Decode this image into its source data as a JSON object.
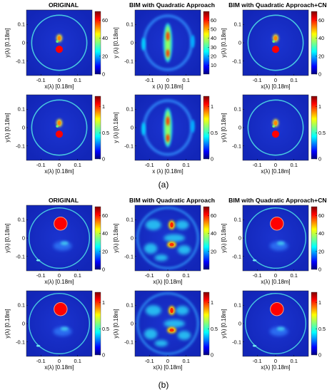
{
  "caption_a": "(a)",
  "caption_b": "(b)",
  "colors": {
    "colormap": [
      "#00007f",
      "#0000ff",
      "#0080ff",
      "#00ffff",
      "#80ff80",
      "#ffff00",
      "#ff8000",
      "#ff0000",
      "#7f0000"
    ],
    "background": "#1a2bc4",
    "ring": "#48c8e0"
  },
  "chart_data": [
    {
      "type": "heatmap",
      "title": "ORIGINAL",
      "panel": "a",
      "row": 1,
      "col": 1,
      "xlabel": "x(λ) [0.18m]",
      "ylabel": "y(λ) [0.18m]",
      "xticks": [
        "-0.1",
        "0",
        "0.1"
      ],
      "yticks": [
        "0.1",
        "0",
        "-0.1"
      ],
      "colorbar_ticks": [
        "60",
        "40",
        "20",
        "0"
      ],
      "clim": [
        0,
        70
      ],
      "grid": false
    },
    {
      "type": "heatmap",
      "title": "BIM with Quadratic Approach",
      "panel": "a",
      "row": 1,
      "col": 2,
      "xlabel": "x (λ) [0.18m]",
      "ylabel": "y (λ) [0.18m]",
      "xticks": [
        "-0.1",
        "0",
        "0.1"
      ],
      "yticks": [
        "0.1",
        "0",
        "-0.1"
      ],
      "colorbar_ticks": [
        "60",
        "50",
        "40",
        "30",
        "20",
        "10"
      ],
      "clim": [
        0,
        70
      ],
      "grid": false
    },
    {
      "type": "heatmap",
      "title": "BIM with Quadratic Approach+CNN",
      "panel": "a",
      "row": 1,
      "col": 3,
      "xlabel": "x(λ) [0.18m]",
      "ylabel": "y(λ) [0.18m]",
      "xticks": [
        "-0.1",
        "0",
        "0.1"
      ],
      "yticks": [
        "0.1",
        "0",
        "-0.1"
      ],
      "colorbar_ticks": [
        "60",
        "40",
        "20",
        "0"
      ],
      "clim": [
        0,
        70
      ],
      "grid": false
    },
    {
      "type": "heatmap",
      "title": "",
      "panel": "a",
      "row": 2,
      "col": 1,
      "xlabel": "x(λ) [0.18m]",
      "ylabel": "y(λ) [0.18m]",
      "xticks": [
        "-0.1",
        "0",
        "0.1"
      ],
      "yticks": [
        "0.1",
        "0",
        "-0.1"
      ],
      "colorbar_ticks": [
        "1",
        "0.5",
        "0"
      ],
      "clim": [
        0,
        1.2
      ],
      "grid": false
    },
    {
      "type": "heatmap",
      "title": "",
      "panel": "a",
      "row": 2,
      "col": 2,
      "xlabel": "x (λ) [0.18m]",
      "ylabel": "y (λ) [0.18m]",
      "xticks": [
        "-0.1",
        "0",
        "0.1"
      ],
      "yticks": [
        "0.1",
        "0",
        "-0.1"
      ],
      "colorbar_ticks": [
        "1",
        "0.5",
        "0"
      ],
      "clim": [
        0,
        1.2
      ],
      "grid": false
    },
    {
      "type": "heatmap",
      "title": "",
      "panel": "a",
      "row": 2,
      "col": 3,
      "xlabel": "x(λ) [0.18m]",
      "ylabel": "y(λ) [0.18m]",
      "xticks": [
        "-0.1",
        "0",
        "0.1"
      ],
      "yticks": [
        "0.1",
        "0",
        "-0.1"
      ],
      "colorbar_ticks": [
        "1",
        "0.5",
        "0"
      ],
      "clim": [
        0,
        1.2
      ],
      "grid": false
    },
    {
      "type": "heatmap",
      "title": "ORIGINAL",
      "panel": "b",
      "row": 1,
      "col": 1,
      "xlabel": "x(λ) [0.18m]",
      "ylabel": "y(λ) [0.18m]",
      "xticks": [
        "-0.1",
        "0",
        "0.1"
      ],
      "yticks": [
        "0.1",
        "0",
        "-0.1"
      ],
      "colorbar_ticks": [
        "60",
        "40",
        "20",
        "0"
      ],
      "clim": [
        0,
        70
      ],
      "grid": false
    },
    {
      "type": "heatmap",
      "title": "BIM with Quadratic Approach",
      "panel": "b",
      "row": 1,
      "col": 2,
      "xlabel": "x(λ) [0.18m]",
      "ylabel": "y(λ) [0.18m]",
      "xticks": [
        "-0.1",
        "0",
        "0.1"
      ],
      "yticks": [
        "0.1",
        "0",
        "-0.1"
      ],
      "colorbar_ticks": [
        "60",
        "40",
        "20"
      ],
      "clim": [
        0,
        70
      ],
      "grid": false
    },
    {
      "type": "heatmap",
      "title": "BIM with Quadratic Approach+CNN",
      "panel": "b",
      "row": 1,
      "col": 3,
      "xlabel": "x(λ) [0.18m]",
      "ylabel": "y(λ) [0.18m]",
      "xticks": [
        "-0.1",
        "0",
        "0.1"
      ],
      "yticks": [
        "0.1",
        "0",
        "-0.1"
      ],
      "colorbar_ticks": [
        "60",
        "40",
        "20",
        "0"
      ],
      "clim": [
        0,
        70
      ],
      "grid": false
    },
    {
      "type": "heatmap",
      "title": "",
      "panel": "b",
      "row": 2,
      "col": 1,
      "xlabel": "x(λ) [0.18m]",
      "ylabel": "y(λ) [0.18m]",
      "xticks": [
        "-0.1",
        "0",
        "0.1"
      ],
      "yticks": [
        "0.1",
        "0",
        "-0.1"
      ],
      "colorbar_ticks": [
        "1",
        "0.5",
        "0"
      ],
      "clim": [
        0,
        1.2
      ],
      "grid": false
    },
    {
      "type": "heatmap",
      "title": "",
      "panel": "b",
      "row": 2,
      "col": 2,
      "xlabel": "x(λ) [0.18m]",
      "ylabel": "y(λ) [0.18m]",
      "xticks": [
        "-0.1",
        "0",
        "0.1"
      ],
      "yticks": [
        "0.1",
        "0",
        "-0.1"
      ],
      "colorbar_ticks": [
        "1",
        "0.5",
        "0"
      ],
      "clim": [
        0,
        1.2
      ],
      "grid": false
    },
    {
      "type": "heatmap",
      "title": "",
      "panel": "b",
      "row": 2,
      "col": 3,
      "xlabel": "x(λ) [0.18m]",
      "ylabel": "y(λ) [0.18m]",
      "xticks": [
        "-0.1",
        "0",
        "0.1"
      ],
      "yticks": [
        "0.1",
        "0",
        "-0.1"
      ],
      "colorbar_ticks": [
        "1",
        "0.5",
        "0"
      ],
      "clim": [
        0,
        1.2
      ],
      "grid": false
    }
  ]
}
